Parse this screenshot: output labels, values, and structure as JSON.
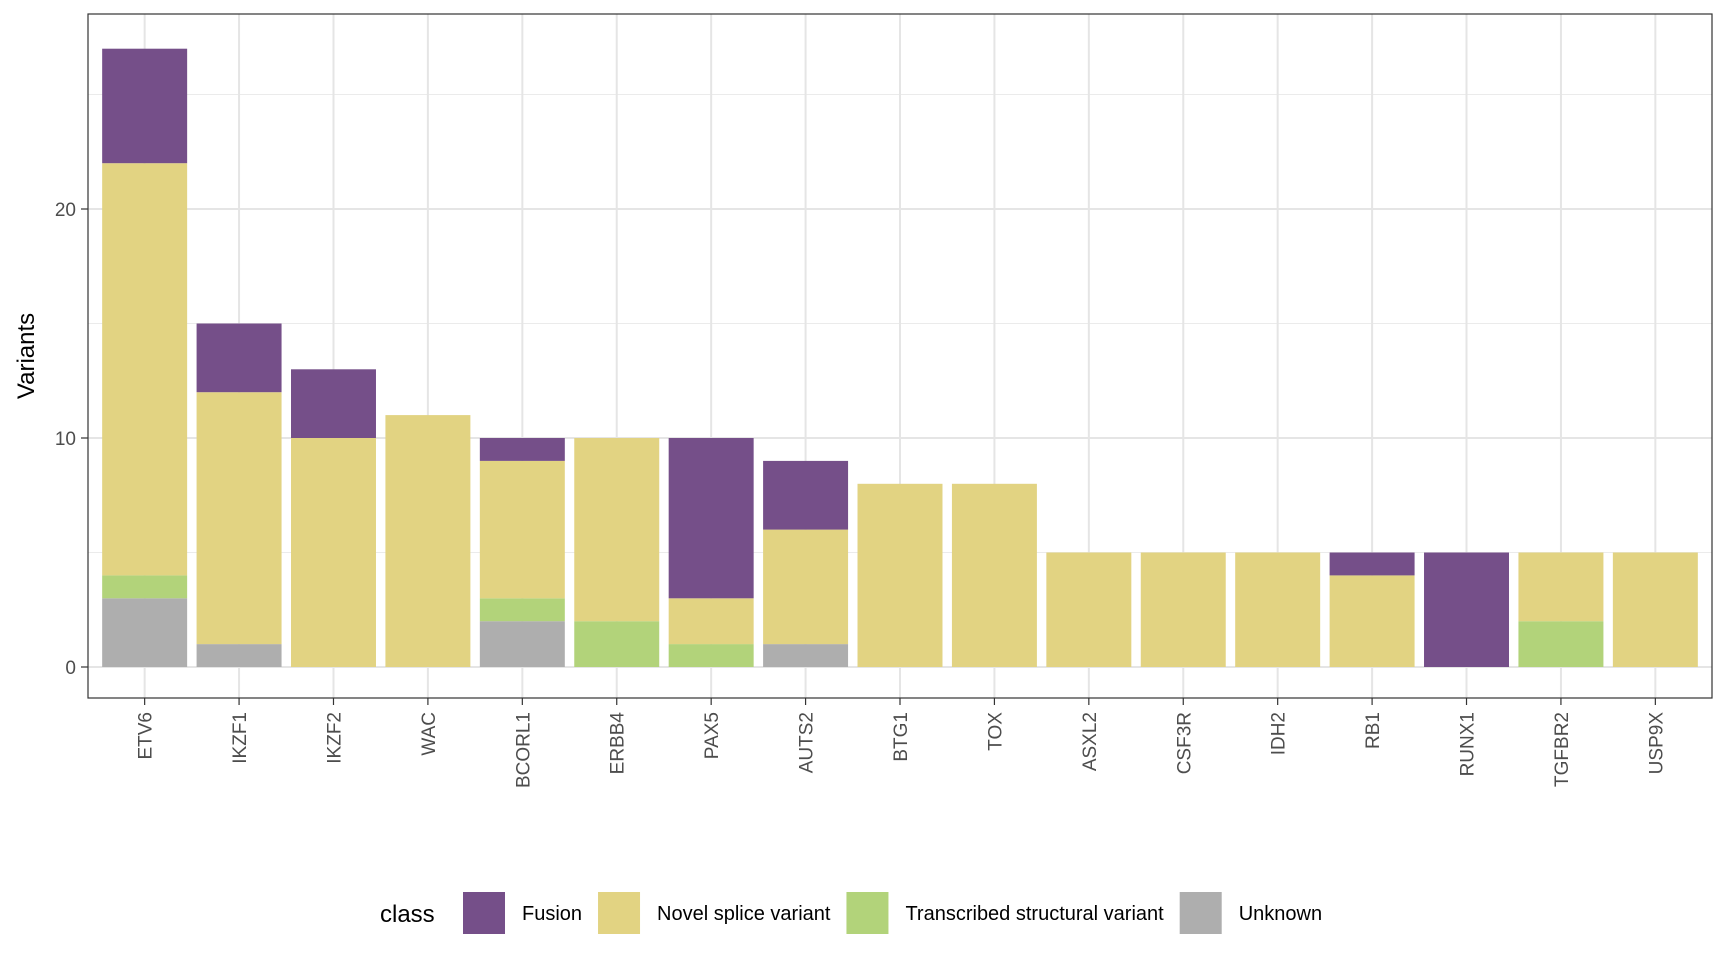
{
  "chart_data": {
    "type": "bar",
    "stacked": true,
    "title": "",
    "xlabel": "",
    "ylabel": "Variants",
    "ylim": [
      0,
      28.3
    ],
    "y_ticks": [
      0,
      10,
      20
    ],
    "grid": true,
    "legend_position": "bottom",
    "legend_title": "class",
    "categories": [
      "ETV6",
      "IKZF1",
      "IKZF2",
      "WAC",
      "BCORL1",
      "ERBB4",
      "PAX5",
      "AUTS2",
      "BTG1",
      "TOX",
      "ASXL2",
      "CSF3R",
      "IDH2",
      "RB1",
      "RUNX1",
      "TGFBR2",
      "USP9X"
    ],
    "series": [
      {
        "name": "Unknown",
        "color": "#AEAEAE",
        "values": [
          3,
          1,
          0,
          0,
          2,
          0,
          0,
          1,
          0,
          0,
          0,
          0,
          0,
          0,
          0,
          0,
          0
        ]
      },
      {
        "name": "Transcribed structural variant",
        "color": "#B2D37A",
        "values": [
          1,
          0,
          0,
          0,
          1,
          2,
          1,
          0,
          0,
          0,
          0,
          0,
          0,
          0,
          0,
          2,
          0
        ]
      },
      {
        "name": "Novel splice variant",
        "color": "#E2D382",
        "values": [
          18,
          11,
          10,
          11,
          6,
          8,
          2,
          5,
          8,
          8,
          5,
          5,
          5,
          4,
          0,
          3,
          5
        ]
      },
      {
        "name": "Fusion",
        "color": "#754F89",
        "values": [
          5,
          3,
          3,
          0,
          1,
          0,
          7,
          3,
          0,
          0,
          0,
          0,
          0,
          1,
          5,
          0,
          0
        ]
      }
    ],
    "legend_order": [
      "Fusion",
      "Novel splice variant",
      "Transcribed structural variant",
      "Unknown"
    ]
  }
}
